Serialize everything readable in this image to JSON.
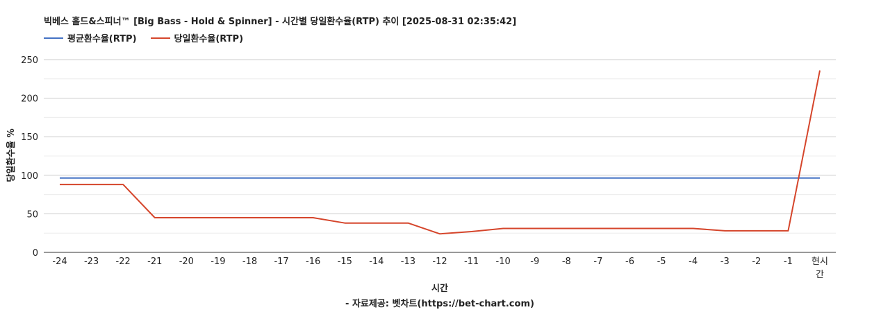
{
  "chart_data": {
    "type": "line",
    "title": "빅베스 홀드&스피너™ [Big Bass - Hold & Spinner] - 시간별 당일환수율(RTP) 추이 [2025-08-31 02:35:42]",
    "xlabel": "시간",
    "source": "- 자료제공: 벳차트(https://bet-chart.com)",
    "ylabel": "당일환수율 %",
    "ylim": [
      0,
      250
    ],
    "yticks": [
      "0",
      "50",
      "100",
      "150",
      "200",
      "250"
    ],
    "categories": [
      "-24",
      "-23",
      "-22",
      "-21",
      "-20",
      "-19",
      "-18",
      "-17",
      "-16",
      "-15",
      "-14",
      "-13",
      "-12",
      "-11",
      "-10",
      "-9",
      "-8",
      "-7",
      "-6",
      "-5",
      "-4",
      "-3",
      "-2",
      "-1",
      "현시간"
    ],
    "legend_position": "top-left",
    "grid": true,
    "series": [
      {
        "name": "평균환수율(RTP)",
        "color": "#4472c4",
        "values": [
          96.5,
          96.5,
          96.5,
          96.5,
          96.5,
          96.5,
          96.5,
          96.5,
          96.5,
          96.5,
          96.5,
          96.5,
          96.5,
          96.5,
          96.5,
          96.5,
          96.5,
          96.5,
          96.5,
          96.5,
          96.5,
          96.5,
          96.5,
          96.5,
          96.5
        ]
      },
      {
        "name": "당일환수율(RTP)",
        "color": "#d5452b",
        "values": [
          88,
          88,
          88,
          45,
          45,
          45,
          45,
          45,
          45,
          38,
          38,
          38,
          24,
          27,
          31,
          31,
          31,
          31,
          31,
          31,
          31,
          28,
          28,
          28,
          236
        ]
      }
    ]
  }
}
